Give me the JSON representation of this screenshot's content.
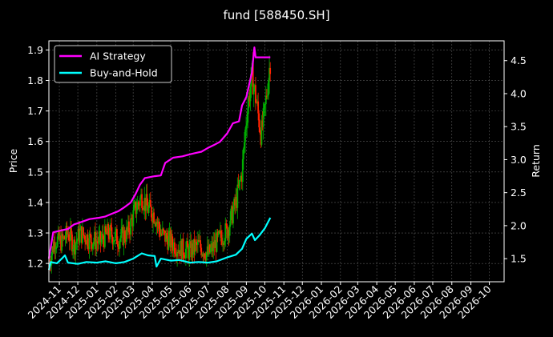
{
  "chart_data": {
    "type": "line",
    "title": "fund [588450.SH]",
    "ylabel_left": "Price",
    "ylabel_right": "Return",
    "grid": true,
    "legend_placement": "top-left",
    "background": "#000000",
    "ylim_left": [
      1.14,
      1.93
    ],
    "ylim_right": [
      1.15,
      4.8
    ],
    "yticks_left": [
      1.2,
      1.3,
      1.4,
      1.5,
      1.6,
      1.7,
      1.8,
      1.9
    ],
    "yticks_right": [
      1.5,
      2.0,
      2.5,
      3.0,
      3.5,
      4.0,
      4.5
    ],
    "x_ticks": [
      "2024-11",
      "2024-12",
      "2025-01",
      "2025-02",
      "2025-03",
      "2025-04",
      "2025-05",
      "2025-06",
      "2025-07",
      "2025-08",
      "2025-09",
      "2025-10",
      "2025-11",
      "2025-12",
      "2026-01",
      "2026-02",
      "2026-03",
      "2026-04",
      "2026-05",
      "2026-06",
      "2026-07",
      "2026-08",
      "2026-09",
      "2026-10"
    ],
    "x_range": [
      "2024-10-15",
      "2026-10-25"
    ],
    "series": [
      {
        "name": "AI Strategy",
        "color": "#ff00ff",
        "axis": "right",
        "points": [
          [
            "2024-10-15",
            1.5
          ],
          [
            "2024-10-22",
            1.9
          ],
          [
            "2024-11-05",
            1.93
          ],
          [
            "2024-11-15",
            1.95
          ],
          [
            "2024-11-25",
            2.02
          ],
          [
            "2024-12-05",
            2.05
          ],
          [
            "2024-12-20",
            2.1
          ],
          [
            "2025-01-05",
            2.12
          ],
          [
            "2025-01-15",
            2.14
          ],
          [
            "2025-01-25",
            2.18
          ],
          [
            "2025-02-05",
            2.22
          ],
          [
            "2025-02-15",
            2.28
          ],
          [
            "2025-02-25",
            2.35
          ],
          [
            "2025-03-05",
            2.48
          ],
          [
            "2025-03-12",
            2.62
          ],
          [
            "2025-03-20",
            2.72
          ],
          [
            "2025-04-05",
            2.75
          ],
          [
            "2025-04-15",
            2.76
          ],
          [
            "2025-04-22",
            2.95
          ],
          [
            "2025-05-05",
            3.03
          ],
          [
            "2025-05-20",
            3.05
          ],
          [
            "2025-06-01",
            3.08
          ],
          [
            "2025-06-10",
            3.1
          ],
          [
            "2025-06-20",
            3.12
          ],
          [
            "2025-07-01",
            3.18
          ],
          [
            "2025-07-10",
            3.22
          ],
          [
            "2025-07-20",
            3.27
          ],
          [
            "2025-08-01",
            3.4
          ],
          [
            "2025-08-10",
            3.55
          ],
          [
            "2025-08-20",
            3.58
          ],
          [
            "2025-08-25",
            3.82
          ],
          [
            "2025-09-01",
            3.95
          ],
          [
            "2025-09-10",
            4.32
          ],
          [
            "2025-09-14",
            4.7
          ],
          [
            "2025-09-16",
            4.55
          ],
          [
            "2025-10-10",
            4.55
          ]
        ]
      },
      {
        "name": "Buy-and-Hold",
        "color": "#00ffff",
        "axis": "right",
        "points": [
          [
            "2024-10-15",
            1.33
          ],
          [
            "2024-10-18",
            1.45
          ],
          [
            "2024-10-28",
            1.43
          ],
          [
            "2024-11-05",
            1.5
          ],
          [
            "2024-11-10",
            1.55
          ],
          [
            "2024-11-15",
            1.44
          ],
          [
            "2024-12-01",
            1.42
          ],
          [
            "2024-12-15",
            1.45
          ],
          [
            "2025-01-01",
            1.44
          ],
          [
            "2025-01-15",
            1.46
          ],
          [
            "2025-02-01",
            1.43
          ],
          [
            "2025-02-15",
            1.45
          ],
          [
            "2025-03-01",
            1.5
          ],
          [
            "2025-03-15",
            1.58
          ],
          [
            "2025-03-25",
            1.55
          ],
          [
            "2025-04-05",
            1.54
          ],
          [
            "2025-04-08",
            1.38
          ],
          [
            "2025-04-15",
            1.5
          ],
          [
            "2025-05-01",
            1.47
          ],
          [
            "2025-05-15",
            1.48
          ],
          [
            "2025-06-01",
            1.44
          ],
          [
            "2025-06-15",
            1.45
          ],
          [
            "2025-07-01",
            1.44
          ],
          [
            "2025-07-15",
            1.46
          ],
          [
            "2025-08-01",
            1.52
          ],
          [
            "2025-08-15",
            1.56
          ],
          [
            "2025-08-25",
            1.65
          ],
          [
            "2025-09-01",
            1.8
          ],
          [
            "2025-09-10",
            1.88
          ],
          [
            "2025-09-15",
            1.78
          ],
          [
            "2025-09-22",
            1.85
          ],
          [
            "2025-10-01",
            1.96
          ],
          [
            "2025-10-10",
            2.12
          ]
        ]
      },
      {
        "name": "Price",
        "axis": "left",
        "type": "candlestick",
        "up_color": "#00b000",
        "down_color": "#ff2200",
        "points": [
          [
            "2024-10-15",
            1.2
          ],
          [
            "2024-10-25",
            1.28
          ],
          [
            "2024-11-05",
            1.27
          ],
          [
            "2024-11-15",
            1.3
          ],
          [
            "2024-11-25",
            1.26
          ],
          [
            "2024-12-05",
            1.3
          ],
          [
            "2024-12-20",
            1.28
          ],
          [
            "2025-01-05",
            1.27
          ],
          [
            "2025-01-20",
            1.3
          ],
          [
            "2025-02-05",
            1.28
          ],
          [
            "2025-02-20",
            1.3
          ],
          [
            "2025-03-05",
            1.38
          ],
          [
            "2025-03-15",
            1.42
          ],
          [
            "2025-03-25",
            1.38
          ],
          [
            "2025-04-05",
            1.36
          ],
          [
            "2025-04-15",
            1.3
          ],
          [
            "2025-05-01",
            1.27
          ],
          [
            "2025-05-15",
            1.25
          ],
          [
            "2025-06-01",
            1.24
          ],
          [
            "2025-06-15",
            1.26
          ],
          [
            "2025-07-01",
            1.23
          ],
          [
            "2025-07-15",
            1.27
          ],
          [
            "2025-08-01",
            1.31
          ],
          [
            "2025-08-15",
            1.4
          ],
          [
            "2025-08-25",
            1.5
          ],
          [
            "2025-09-01",
            1.68
          ],
          [
            "2025-09-10",
            1.82
          ],
          [
            "2025-09-18",
            1.72
          ],
          [
            "2025-09-25",
            1.62
          ],
          [
            "2025-10-01",
            1.7
          ],
          [
            "2025-10-10",
            1.87
          ]
        ]
      }
    ]
  }
}
